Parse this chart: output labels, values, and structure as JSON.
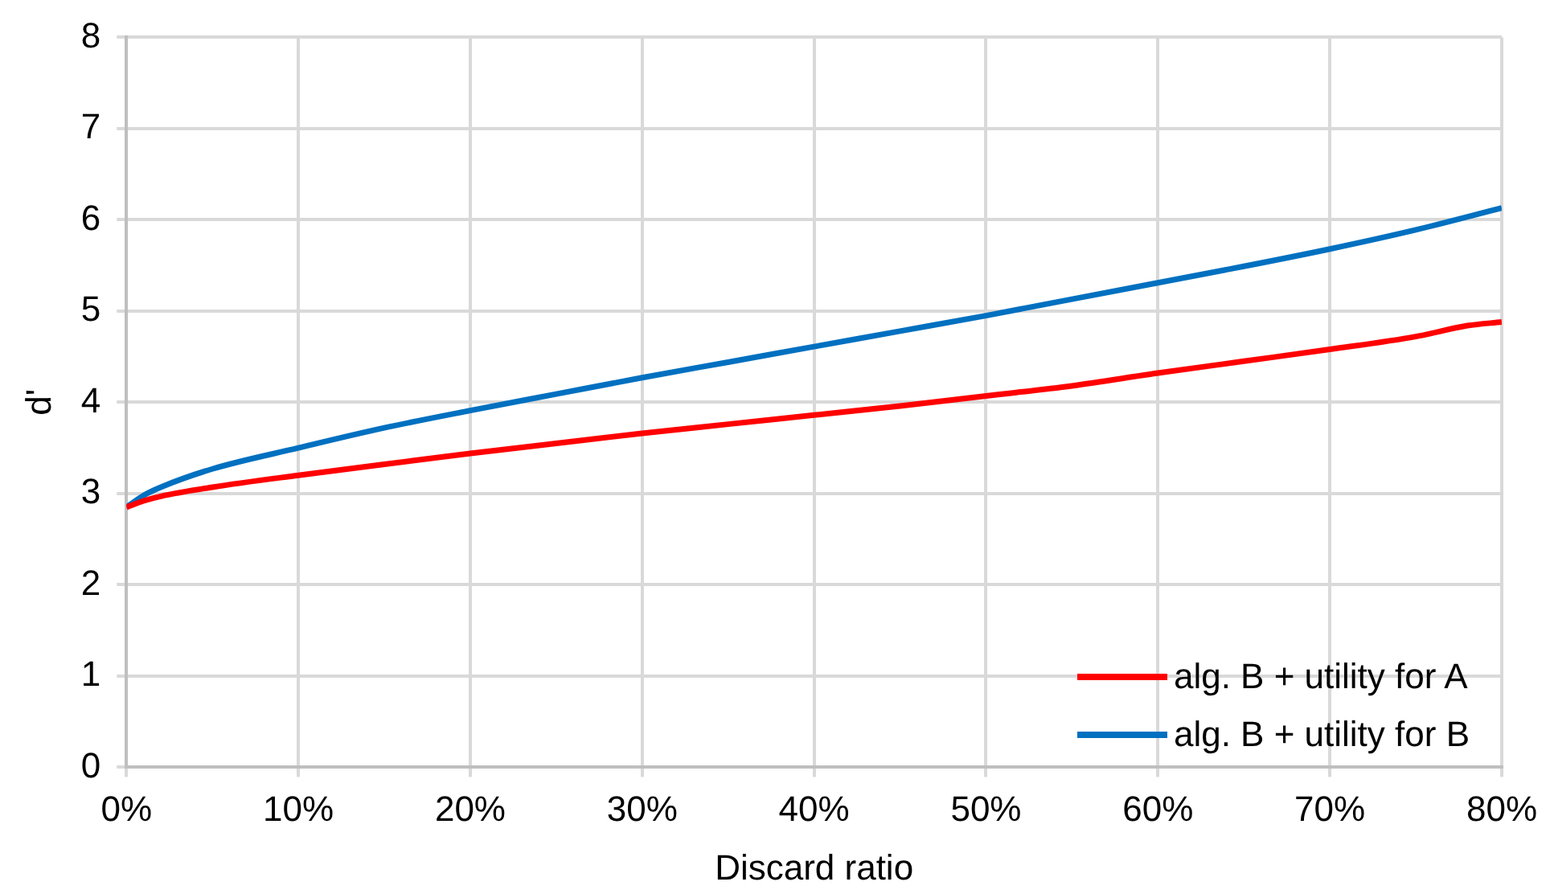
{
  "chart_data": {
    "type": "line",
    "xlabel": "Discard ratio",
    "ylabel": "d'",
    "xlim": [
      0,
      80
    ],
    "xticks": [
      {
        "value": 0,
        "label": "0%"
      },
      {
        "value": 10,
        "label": "10%"
      },
      {
        "value": 20,
        "label": "20%"
      },
      {
        "value": 30,
        "label": "30%"
      },
      {
        "value": 40,
        "label": "40%"
      },
      {
        "value": 50,
        "label": "50%"
      },
      {
        "value": 60,
        "label": "60%"
      },
      {
        "value": 70,
        "label": "70%"
      },
      {
        "value": 80,
        "label": "80%"
      }
    ],
    "ylim": [
      0,
      8
    ],
    "yticks": [
      0,
      1,
      2,
      3,
      4,
      5,
      6,
      7,
      8
    ],
    "grid": true,
    "legend": "bottom right",
    "marker": "none",
    "line_style": "solid",
    "series": [
      {
        "name": "alg. B + utility for A",
        "color": "#ff0000",
        "x": [
          0,
          1,
          2,
          5,
          10,
          15,
          20,
          25,
          30,
          35,
          40,
          45,
          50,
          55,
          60,
          65,
          70,
          75,
          78,
          80
        ],
        "values": [
          2.85,
          2.92,
          2.97,
          3.07,
          3.2,
          3.32,
          3.44,
          3.55,
          3.66,
          3.76,
          3.86,
          3.96,
          4.07,
          4.18,
          4.32,
          4.45,
          4.58,
          4.72,
          4.84,
          4.88
        ]
      },
      {
        "name": "alg. B + utility for B",
        "color": "#0070c0",
        "x": [
          0,
          1,
          2,
          5,
          10,
          15,
          20,
          25,
          30,
          35,
          40,
          45,
          50,
          55,
          60,
          65,
          70,
          75,
          80
        ],
        "values": [
          2.85,
          2.98,
          3.07,
          3.27,
          3.5,
          3.72,
          3.91,
          4.09,
          4.27,
          4.44,
          4.61,
          4.78,
          4.95,
          5.13,
          5.31,
          5.49,
          5.68,
          5.89,
          6.13
        ]
      }
    ]
  }
}
